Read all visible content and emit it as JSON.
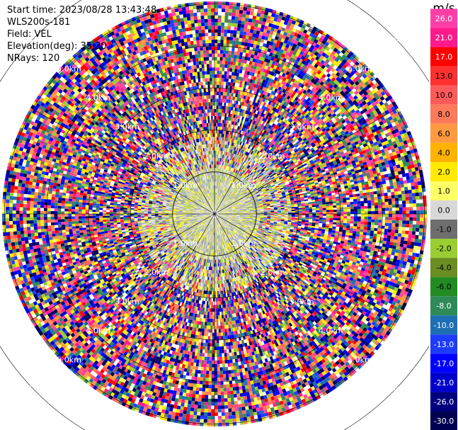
{
  "info": {
    "start_time": "Start time: 2023/08/28 13:43:48",
    "instrument": "WLS200s-181",
    "field": "Field: VEL",
    "elevation": "Elevation(deg): 35.30",
    "nrays": "NRays: 120"
  },
  "colorbar": {
    "unit": "m/s",
    "ticks": [
      "26.0",
      "21.0",
      "17.0",
      "13.0",
      "10.0",
      "8.0",
      "6.0",
      "4.0",
      "2.0",
      "1.0",
      "0.0",
      "-1.0",
      "-2.0",
      "-4.0",
      "-6.0",
      "-8.0",
      "-10.0",
      "-13.0",
      "-17.0",
      "-21.0",
      "-26.0",
      "-30.0"
    ],
    "colors": [
      "#ff3fa8",
      "#ff1a8c",
      "#ff0000",
      "#ff3030",
      "#ff5a5a",
      "#ff7a5a",
      "#ff9a40",
      "#ffb300",
      "#ffea00",
      "#ffff66",
      "#d8d8d8",
      "#6e6e6e",
      "#9acd32",
      "#6b8e23",
      "#228b22",
      "#2e8b57",
      "#1e6eb4",
      "#1e3cff",
      "#0000ff",
      "#0000cd",
      "#00007f",
      "#000050"
    ]
  },
  "chart_data": {
    "type": "heatmap",
    "projection": "polar PPI",
    "title": "",
    "field": "VEL",
    "units": "m/s",
    "elevation_deg": 35.3,
    "n_rays": 120,
    "range_ring_labels": [
      "1.0km",
      "2.0km",
      "3.0km",
      "4.0km",
      "5.0km",
      "6.0km"
    ],
    "colorbar_range": [
      -30.0,
      26.0
    ],
    "grid": true
  }
}
